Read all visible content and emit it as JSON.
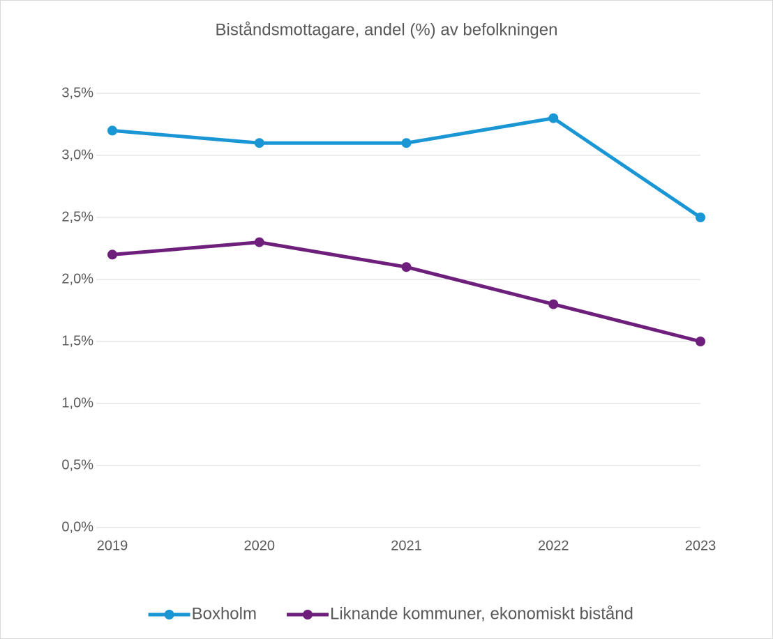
{
  "chart_data": {
    "type": "line",
    "title": "Biståndsmottagare, andel (%) av befolkningen",
    "categories": [
      "2019",
      "2020",
      "2021",
      "2022",
      "2023"
    ],
    "series": [
      {
        "name": "Boxholm",
        "color": "#1a96d4",
        "values": [
          3.2,
          3.1,
          3.1,
          3.3,
          2.5
        ]
      },
      {
        "name": "Liknande kommuner, ekonomiskt bistånd",
        "color": "#6d1f7b",
        "values": [
          2.2,
          2.3,
          2.1,
          1.8,
          1.5
        ]
      }
    ],
    "ylim": [
      0,
      3.5
    ],
    "yticks": [
      {
        "value": 0,
        "label": "0,0%"
      },
      {
        "value": 0.5,
        "label": "0,5%"
      },
      {
        "value": 1,
        "label": "1,0%"
      },
      {
        "value": 1.5,
        "label": "1,5%"
      },
      {
        "value": 2,
        "label": "2,0%"
      },
      {
        "value": 2.5,
        "label": "2,5%"
      },
      {
        "value": 3,
        "label": "3,0%"
      },
      {
        "value": 3.5,
        "label": "3,5%"
      }
    ],
    "grid": true,
    "legend": "bottom"
  }
}
